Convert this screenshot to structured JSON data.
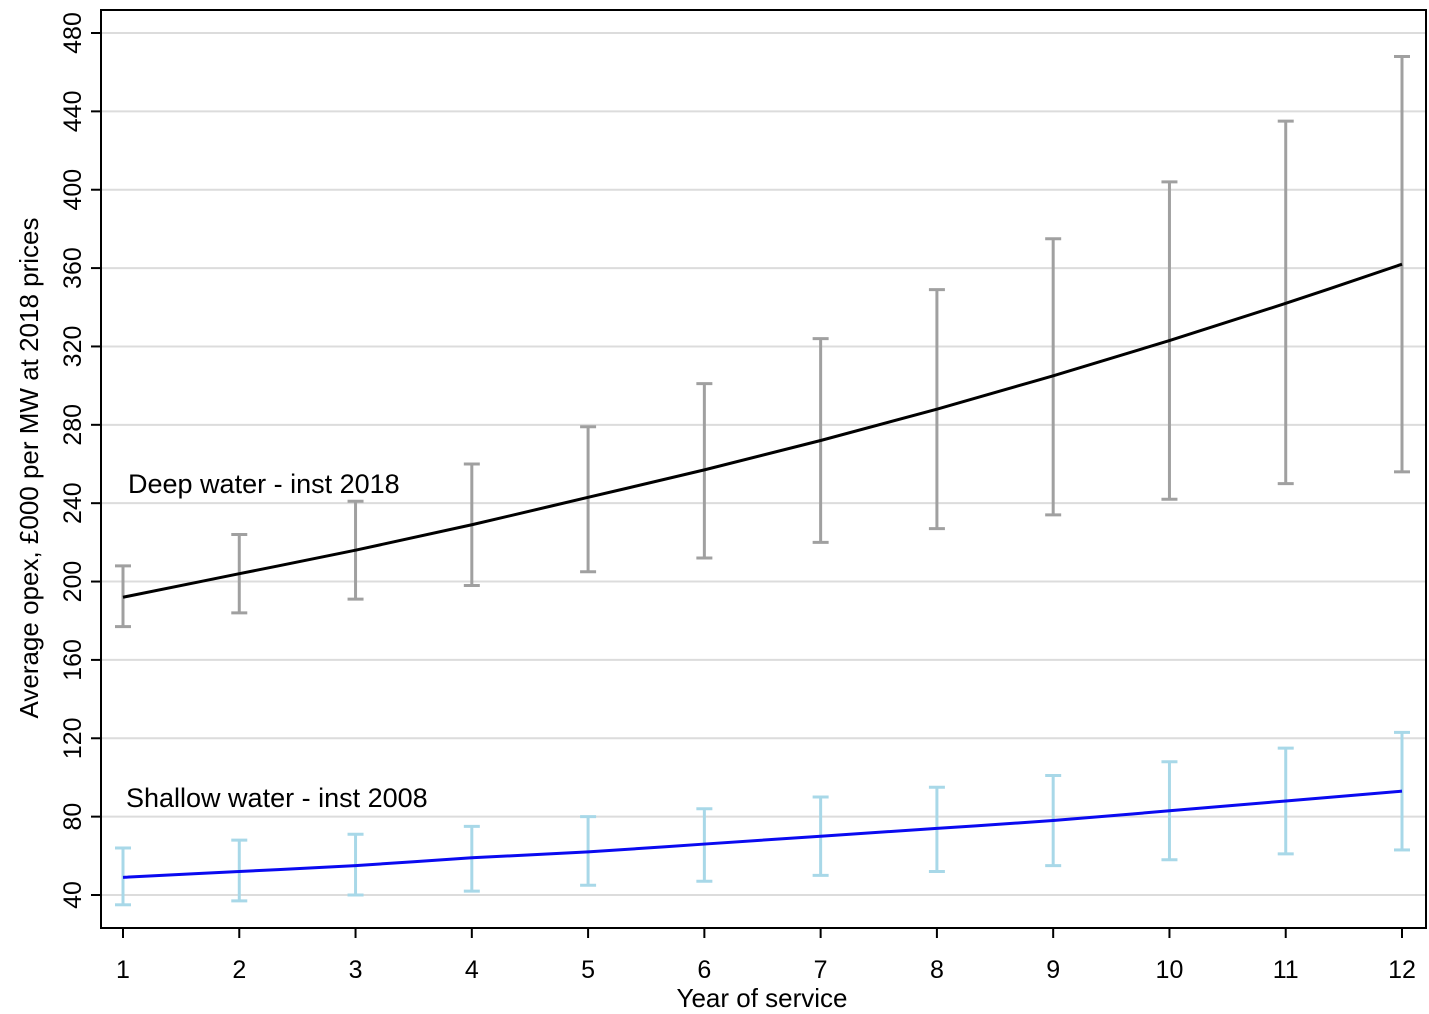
{
  "chart_data": {
    "type": "line",
    "title": "",
    "xlabel": "Year of service",
    "ylabel": "Average opex, £000 per MW at 2018 prices",
    "xlim": [
      1,
      12
    ],
    "ylim": [
      40,
      480
    ],
    "x_ticks": [
      1,
      2,
      3,
      4,
      5,
      6,
      7,
      8,
      9,
      10,
      11,
      12
    ],
    "y_ticks": [
      40,
      80,
      120,
      160,
      200,
      240,
      280,
      320,
      360,
      400,
      440,
      480
    ],
    "grid": "horizontal",
    "legend": "none",
    "x": [
      1,
      2,
      3,
      4,
      5,
      6,
      7,
      8,
      9,
      10,
      11,
      12
    ],
    "series": [
      {
        "name": "Deep water - inst 2018",
        "line_color": "#000000",
        "errorbar_color": "#a0a0a0",
        "values": [
          192,
          204,
          216,
          229,
          243,
          257,
          272,
          288,
          305,
          323,
          342,
          362
        ],
        "lower": [
          177,
          184,
          191,
          198,
          205,
          212,
          220,
          227,
          234,
          242,
          250,
          256
        ],
        "upper": [
          208,
          224,
          241,
          260,
          279,
          301,
          324,
          349,
          375,
          404,
          435,
          468
        ]
      },
      {
        "name": "Shallow water - inst 2008",
        "line_color": "#0a0af0",
        "errorbar_color": "#a8d8e8",
        "values": [
          49,
          52,
          55,
          59,
          62,
          66,
          70,
          74,
          78,
          83,
          88,
          93
        ],
        "lower": [
          35,
          37,
          40,
          42,
          45,
          47,
          50,
          52,
          55,
          58,
          61,
          63
        ],
        "upper": [
          64,
          68,
          71,
          75,
          80,
          84,
          90,
          95,
          101,
          108,
          115,
          123
        ]
      }
    ]
  }
}
